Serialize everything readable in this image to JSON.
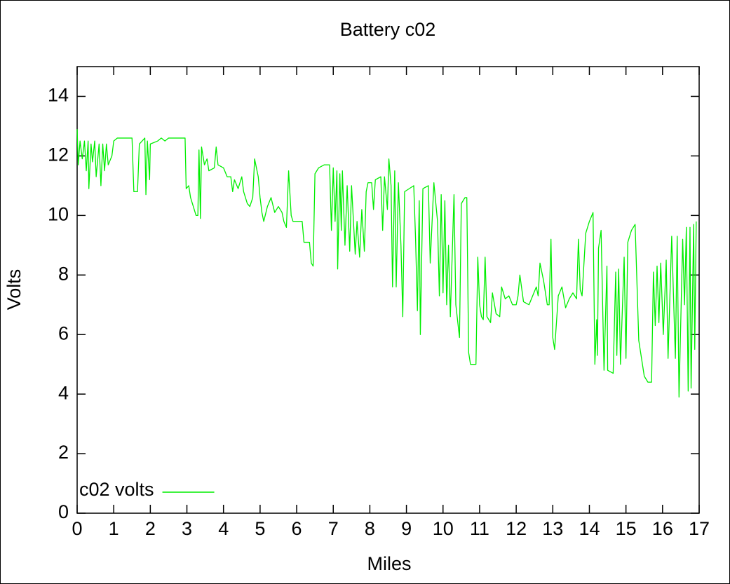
{
  "chart_data": {
    "type": "line",
    "title": "Battery c02",
    "xlabel": "Miles",
    "ylabel": "Volts",
    "xlim": [
      0,
      17
    ],
    "ylim": [
      0,
      15
    ],
    "xticks": [
      0,
      1,
      2,
      3,
      4,
      5,
      6,
      7,
      8,
      9,
      10,
      11,
      12,
      13,
      14,
      15,
      16,
      17
    ],
    "yticks": [
      0,
      2,
      4,
      6,
      8,
      10,
      12,
      14
    ],
    "grid": false,
    "legend": "bottom-left",
    "x": [
      0,
      0.03,
      0.08,
      0.14,
      0.2,
      0.25,
      0.3,
      0.32,
      0.38,
      0.42,
      0.48,
      0.52,
      0.6,
      0.65,
      0.7,
      0.75,
      0.8,
      0.85,
      0.95,
      1,
      1.1,
      1.5,
      1.55,
      1.65,
      1.7,
      1.85,
      1.88,
      1.92,
      1.98,
      2,
      2.2,
      2.3,
      2.4,
      2.5,
      2.95,
      2.98,
      3.05,
      3.1,
      3.25,
      3.3,
      3.33,
      3.37,
      3.4,
      3.48,
      3.55,
      3.6,
      3.75,
      3.8,
      3.85,
      4,
      4.1,
      4.2,
      4.25,
      4.3,
      4.4,
      4.5,
      4.55,
      4.65,
      4.72,
      4.8,
      4.85,
      4.95,
      5,
      5.05,
      5.1,
      5.2,
      5.3,
      5.4,
      5.5,
      5.6,
      5.65,
      5.72,
      5.78,
      5.85,
      5.9,
      6.15,
      6.2,
      6.35,
      6.4,
      6.45,
      6.5,
      6.6,
      6.75,
      6.9,
      6.95,
      7,
      7.05,
      7.1,
      7.12,
      7.18,
      7.22,
      7.25,
      7.32,
      7.38,
      7.45,
      7.5,
      7.6,
      7.65,
      7.72,
      7.78,
      7.85,
      7.9,
      7.95,
      8.05,
      8.1,
      8.15,
      8.3,
      8.35,
      8.4,
      8.48,
      8.52,
      8.58,
      8.62,
      8.68,
      8.72,
      8.78,
      8.85,
      8.9,
      8.95,
      9.2,
      9.25,
      9.3,
      9.35,
      9.38,
      9.45,
      9.6,
      9.65,
      9.75,
      9.85,
      9.9,
      9.95,
      10,
      10.05,
      10.1,
      10.15,
      10.2,
      10.3,
      10.35,
      10.45,
      10.5,
      10.6,
      10.65,
      10.7,
      10.75,
      10.9,
      10.95,
      11,
      11.05,
      11.1,
      11.15,
      11.2,
      11.3,
      11.35,
      11.45,
      11.55,
      11.6,
      11.7,
      11.8,
      11.9,
      12,
      12.05,
      12.1,
      12.2,
      12.35,
      12.45,
      12.55,
      12.6,
      12.65,
      12.75,
      12.85,
      12.9,
      12.95,
      13,
      13.05,
      13.15,
      13.25,
      13.35,
      13.45,
      13.55,
      13.65,
      13.7,
      13.75,
      13.8,
      13.9,
      14,
      14.1,
      14.15,
      14.2,
      14.22,
      14.25,
      14.32,
      14.4,
      14.48,
      14.5,
      14.65,
      14.72,
      14.75,
      14.8,
      14.85,
      14.95,
      15,
      15.05,
      15.15,
      15.25,
      15.35,
      15.5,
      15.6,
      15.7,
      15.75,
      15.8,
      15.85,
      15.9,
      15.95,
      16.02,
      16.1,
      16.15,
      16.25,
      16.35,
      16.4,
      16.45,
      16.55,
      16.6,
      16.65,
      16.7,
      16.75,
      16.78,
      16.85,
      16.88,
      16.92
    ],
    "series": [
      {
        "name": "c02 volts",
        "color": "#00ee00",
        "values": [
          12.9,
          11.7,
          12.5,
          11.9,
          12.5,
          11.5,
          12.5,
          10.9,
          12.4,
          11.8,
          12.5,
          11.3,
          12.4,
          11,
          12.4,
          11.5,
          12.4,
          11.7,
          12,
          12.5,
          12.6,
          12.6,
          10.8,
          10.8,
          12.4,
          12.6,
          10.7,
          12.5,
          11.2,
          12.4,
          12.5,
          12.6,
          12.5,
          12.6,
          12.6,
          10.9,
          11,
          10.6,
          10,
          10,
          12.2,
          9.9,
          12.3,
          11.7,
          11.9,
          11.5,
          11.6,
          12.3,
          11.7,
          11.6,
          11.3,
          11.3,
          10.8,
          11.2,
          10.9,
          11.3,
          10.8,
          10.4,
          10.3,
          10.6,
          11.9,
          11.3,
          10.6,
          10.1,
          9.8,
          10.3,
          10.6,
          10.1,
          10.3,
          10.1,
          9.8,
          9.6,
          11.5,
          10,
          9.8,
          9.8,
          9.1,
          9.1,
          8.4,
          8.3,
          11.4,
          11.6,
          11.7,
          11.7,
          9.5,
          11.6,
          9.8,
          11.5,
          8.2,
          11.4,
          9.5,
          11.5,
          9,
          11,
          8.8,
          11,
          8.7,
          9.8,
          8.6,
          10.2,
          8.8,
          10.8,
          11.1,
          11.1,
          10.2,
          11.2,
          11.3,
          9.5,
          11.3,
          10.2,
          11.9,
          11,
          7.6,
          11.5,
          7.6,
          11.1,
          9,
          6.6,
          10.8,
          11,
          9.2,
          6.8,
          10.5,
          6,
          10.9,
          11,
          8.4,
          11.1,
          9.8,
          7.3,
          10.7,
          7.4,
          10.5,
          7,
          9,
          6.6,
          10.7,
          7,
          5.9,
          10.4,
          10.6,
          10.6,
          5.4,
          5,
          5,
          8.6,
          7,
          6.6,
          6.5,
          8.6,
          6.6,
          6.4,
          7.4,
          6.7,
          6.6,
          7.6,
          7.2,
          7.3,
          7,
          7,
          7.3,
          8,
          7.1,
          7,
          7.3,
          7.6,
          7.3,
          8.4,
          7.8,
          7,
          7,
          9.2,
          5.9,
          5.5,
          7.3,
          7.6,
          6.9,
          7.2,
          7.4,
          7.2,
          9.2,
          7.5,
          7.3,
          9.4,
          9.8,
          10.1,
          5,
          6.5,
          5.3,
          8.9,
          9.5,
          4.8,
          8.3,
          4.8,
          4.7,
          8.1,
          5.3,
          8.2,
          5,
          8.6,
          5.2,
          9.1,
          9.5,
          9.7,
          5.8,
          4.6,
          4.4,
          4.4,
          8.1,
          6.3,
          8.3,
          6.4,
          8.4,
          6,
          8.5,
          5.2,
          9.3,
          5.2,
          9.3,
          3.9,
          9.2,
          7,
          9.6,
          4.1,
          9.6,
          4.2,
          9.7,
          5.5,
          9.8
        ]
      }
    ]
  }
}
